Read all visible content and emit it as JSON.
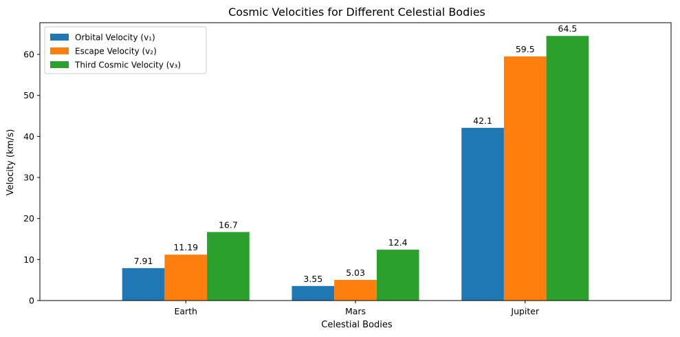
{
  "chart_data": {
    "type": "bar",
    "title": "Cosmic Velocities for Different Celestial Bodies",
    "xlabel": "Celestial Bodies",
    "ylabel": "Velocity (km/s)",
    "categories": [
      "Earth",
      "Mars",
      "Jupiter"
    ],
    "series": [
      {
        "name": "Orbital Velocity (v₁)",
        "values": [
          7.91,
          3.55,
          42.1
        ],
        "labels": [
          "7.91",
          "3.55",
          "42.1"
        ],
        "color": "#1f77b4"
      },
      {
        "name": "Escape Velocity (v₂)",
        "values": [
          11.19,
          5.03,
          59.5
        ],
        "labels": [
          "11.19",
          "5.03",
          "59.5"
        ],
        "color": "#ff7f0e"
      },
      {
        "name": "Third Cosmic Velocity (v₃)",
        "values": [
          16.7,
          12.4,
          64.5
        ],
        "labels": [
          "16.7",
          "12.4",
          "64.5"
        ],
        "color": "#2ca02c"
      }
    ],
    "ylim": [
      0,
      67.725
    ],
    "yticks": [
      0,
      10,
      20,
      30,
      40,
      50,
      60
    ],
    "grid": false,
    "legend": "top-left"
  }
}
